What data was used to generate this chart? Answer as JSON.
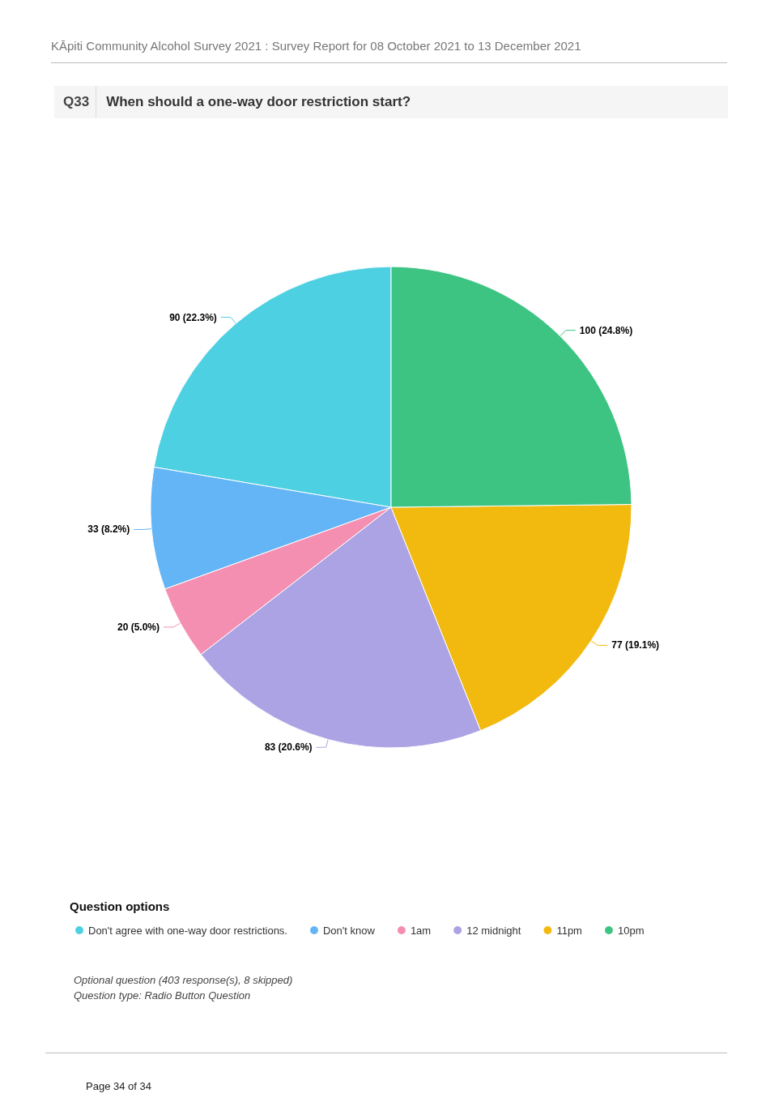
{
  "chart_data": {
    "type": "pie",
    "title": "When should a one-way door restriction start?",
    "legend_title": "Question options",
    "categories": [
      "Don't agree with one-way door restrictions.",
      "Don't know",
      "1am",
      "12 midnight",
      "11pm",
      "10pm"
    ],
    "values": [
      90,
      33,
      20,
      83,
      77,
      100
    ],
    "colors": [
      "#4dd0e1",
      "#64b5f6",
      "#f48fb1",
      "#aba3e3",
      "#f2b90f",
      "#3ec482"
    ],
    "value_labels": [
      "90 (22.3%)",
      "33 (8.2%)",
      "20 (5.0%)",
      "83 (20.6%)",
      "77 (19.1%)",
      "100 (24.8%)"
    ],
    "legend": "bottom",
    "annotations": [
      "KĀpiti Community Alcohol Survey 2021 : Survey Report for 08 October 2021 to 13 December 2021",
      "Q33",
      "Optional question (403 response(s), 8 skipped)",
      "Question type: Radio Button Question",
      "Page 34 of 34"
    ]
  }
}
